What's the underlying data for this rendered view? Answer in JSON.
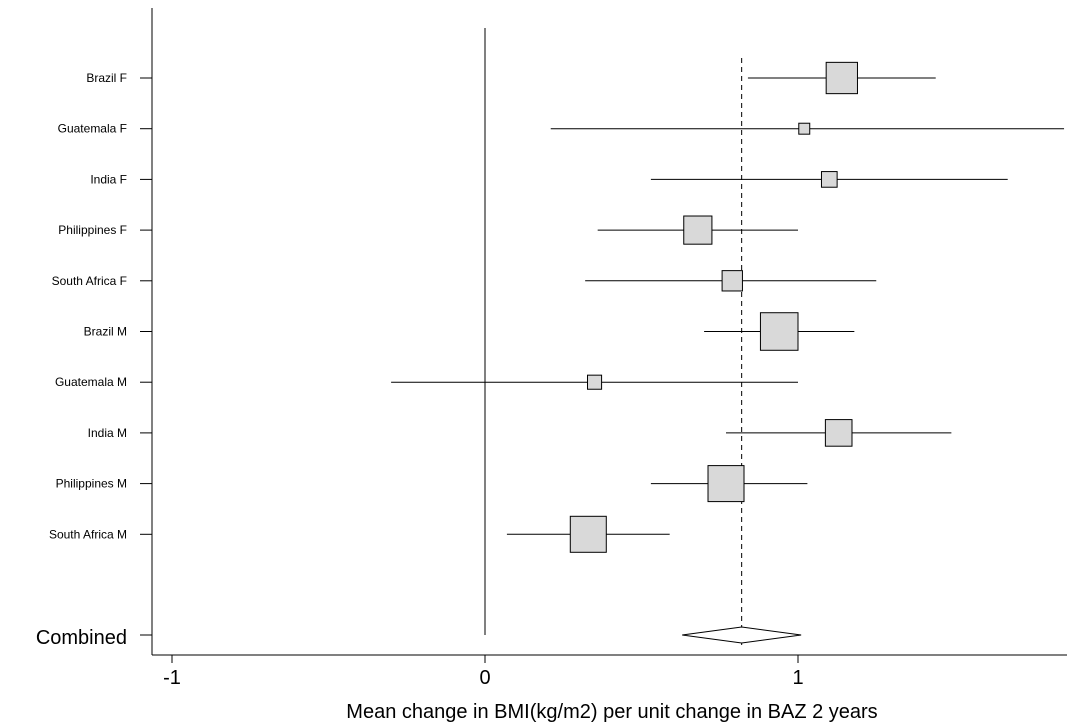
{
  "chart_data": {
    "type": "forest",
    "title": "",
    "xlabel": "Mean change in BMI(kg/m2) per unit change in BAZ 2 years",
    "ylabel": "",
    "xlim": [
      -1.03,
      1.87
    ],
    "xticks": [
      -1,
      0,
      1
    ],
    "xtick_labels": [
      "-1",
      "0",
      "1"
    ],
    "grid": false,
    "reference_line": 0,
    "pooled_line": 0.82,
    "marker_fill": "#d9d9d9",
    "studies": [
      {
        "label": "Brazil F",
        "estimate": 1.14,
        "lower": 0.84,
        "upper": 1.44,
        "box_size": 0.1
      },
      {
        "label": "Guatemala F",
        "estimate": 1.02,
        "lower": 0.21,
        "upper": 1.85,
        "box_size": 0.035
      },
      {
        "label": "India F",
        "estimate": 1.1,
        "lower": 0.53,
        "upper": 1.67,
        "box_size": 0.05
      },
      {
        "label": "Philippines F",
        "estimate": 0.68,
        "lower": 0.36,
        "upper": 1.0,
        "box_size": 0.09
      },
      {
        "label": "South Africa F",
        "estimate": 0.79,
        "lower": 0.32,
        "upper": 1.25,
        "box_size": 0.065
      },
      {
        "label": "Brazil M",
        "estimate": 0.94,
        "lower": 0.7,
        "upper": 1.18,
        "box_size": 0.12
      },
      {
        "label": "Guatemala M",
        "estimate": 0.35,
        "lower": -0.3,
        "upper": 1.0,
        "box_size": 0.045
      },
      {
        "label": "India M",
        "estimate": 1.13,
        "lower": 0.77,
        "upper": 1.49,
        "box_size": 0.085
      },
      {
        "label": "Philippines M",
        "estimate": 0.77,
        "lower": 0.53,
        "upper": 1.03,
        "box_size": 0.115
      },
      {
        "label": "South Africa M",
        "estimate": 0.33,
        "lower": 0.07,
        "upper": 0.59,
        "box_size": 0.115
      }
    ],
    "combined": {
      "label": "Combined",
      "estimate": 0.82,
      "lower": 0.63,
      "upper": 1.01
    }
  }
}
